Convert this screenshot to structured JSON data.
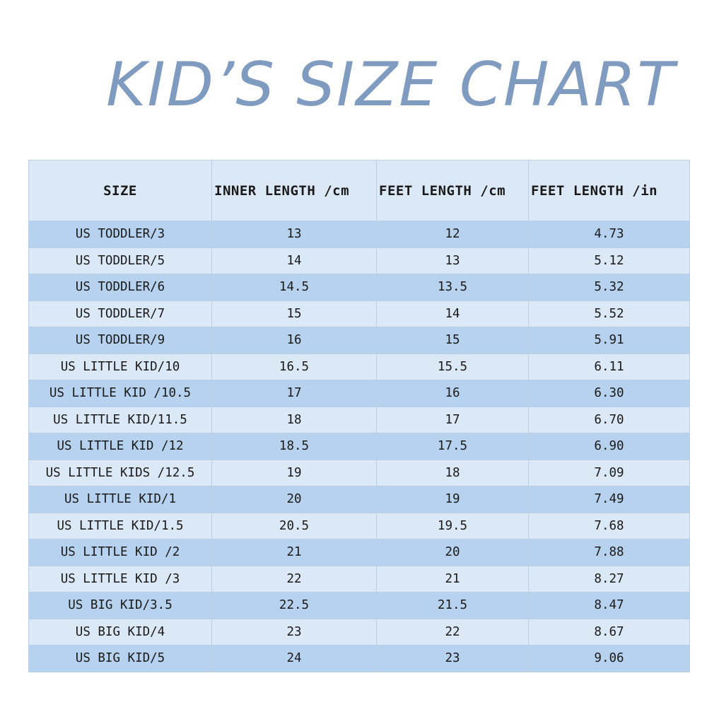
{
  "title": "KID’S SIZE CHART",
  "table": {
    "headers": [
      "SIZE",
      "INNER LENGTH /cm",
      "FEET LENGTH /cm",
      "FEET LENGTH /in"
    ],
    "rows": [
      [
        "US TODDLER/3",
        "13",
        "12",
        "4.73"
      ],
      [
        "US TODDLER/5",
        "14",
        "13",
        "5.12"
      ],
      [
        "US TODDLER/6",
        "14.5",
        "13.5",
        "5.32"
      ],
      [
        "US TODDLER/7",
        "15",
        "14",
        "5.52"
      ],
      [
        "US TODDLER/9",
        "16",
        "15",
        "5.91"
      ],
      [
        "US LITTLE KID/10",
        "16.5",
        "15.5",
        "6.11"
      ],
      [
        "US LITTLE KID /10.5",
        "17",
        "16",
        "6.30"
      ],
      [
        "US LITTLE KID/11.5",
        "18",
        "17",
        "6.70"
      ],
      [
        "US LITTLE KID /12",
        "18.5",
        "17.5",
        "6.90"
      ],
      [
        "US LITTLE KIDS /12.5",
        "19",
        "18",
        "7.09"
      ],
      [
        "US LITTLE KID/1",
        "20",
        "19",
        "7.49"
      ],
      [
        "US LITTLE KID/1.5",
        "20.5",
        "19.5",
        "7.68"
      ],
      [
        "US LITTLE KID /2",
        "21",
        "20",
        "7.88"
      ],
      [
        "US LITTLE KID /3",
        "22",
        "21",
        "8.27"
      ],
      [
        "US BIG KID/3.5",
        "22.5",
        "21.5",
        "8.47"
      ],
      [
        "US BIG KID/4",
        "23",
        "22",
        "8.67"
      ],
      [
        "US BIG KID/5",
        "24",
        "23",
        "9.06"
      ]
    ]
  },
  "colors": {
    "title": "#7f9bbf",
    "header_background": "#dbe8f6",
    "row_dark": "#b6d2ee",
    "row_light": "#dbe8f6",
    "grid_line": "#b9cfe6",
    "text": "#1a1a1a"
  }
}
